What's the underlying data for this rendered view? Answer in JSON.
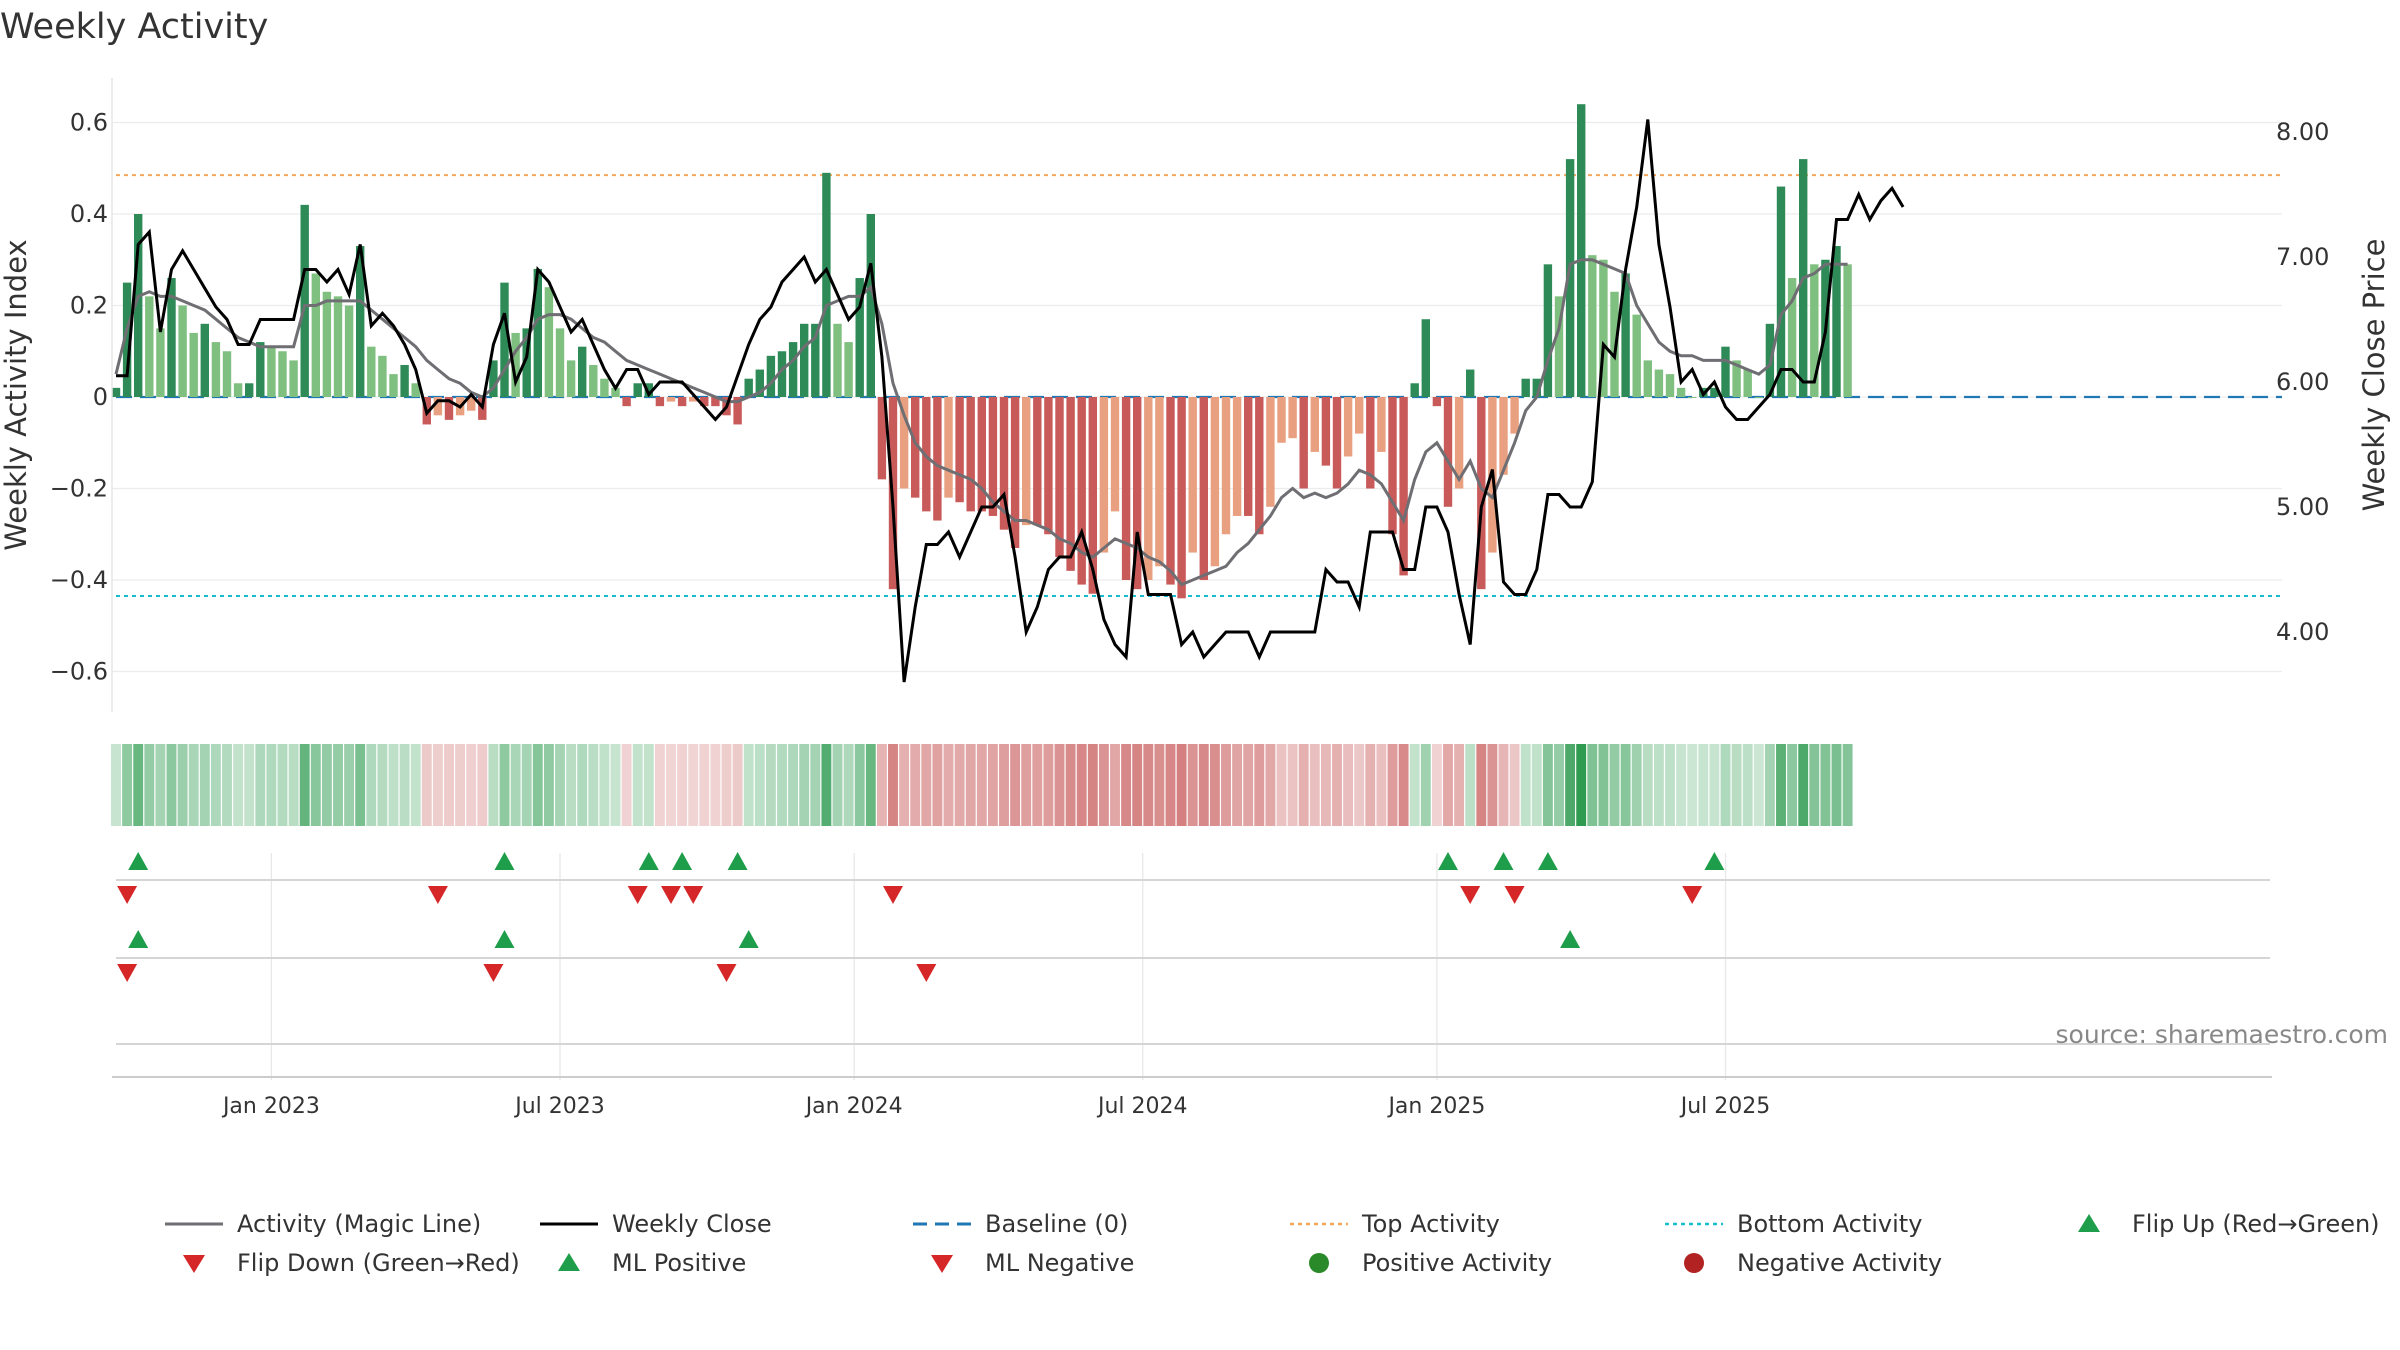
{
  "title": "Weekly Activity",
  "source": "source: sharemaestro.com",
  "colors": {
    "pos_strong": "#2e8b57",
    "pos_weak": "#7fbf7f",
    "neg_strong": "#c85a5a",
    "neg_weak": "#e8a080",
    "magic_line": "#6e6e73",
    "close_line": "#000000",
    "baseline": "#1f77b4",
    "top_line": "#f5a65b",
    "bottom_line": "#17becf",
    "marker_up": "#1e9e4a",
    "marker_down": "#d62728",
    "pos_dot": "#2a8a2a",
    "neg_dot": "#b22222"
  },
  "chart_data": {
    "type": "bar",
    "title": "Weekly Activity",
    "ylabel": "Weekly Activity Index",
    "y2label": "Weekly Close Price",
    "ylim": [
      -0.7,
      0.7
    ],
    "y2lim": [
      3.5,
      8.5
    ],
    "yticks": [
      {
        "value": 0.6,
        "label": "0.6"
      },
      {
        "value": 0.4,
        "label": "0.4"
      },
      {
        "value": 0.2,
        "label": "0.2"
      },
      {
        "value": 0,
        "label": "0"
      },
      {
        "value": -0.2,
        "label": "−0.2"
      },
      {
        "value": -0.4,
        "label": "−0.4"
      },
      {
        "value": -0.6,
        "label": "−0.6"
      }
    ],
    "y2ticks": [
      {
        "value": 8,
        "label": "8.00"
      },
      {
        "value": 7,
        "label": "7.00"
      },
      {
        "value": 6,
        "label": "6.00"
      },
      {
        "value": 5,
        "label": "5.00"
      },
      {
        "value": 4,
        "label": "4.00"
      }
    ],
    "xticks": [
      {
        "week": 14,
        "label": "Jan 2023"
      },
      {
        "week": 40,
        "label": "Jul 2023"
      },
      {
        "week": 66.5,
        "label": "Jan 2024"
      },
      {
        "week": 92.5,
        "label": "Jul 2024"
      },
      {
        "week": 119,
        "label": "Jan 2025"
      },
      {
        "week": 145,
        "label": "Jul 2025"
      }
    ],
    "weeks": 158,
    "top_activity": 0.485,
    "bottom_activity": -0.435,
    "activity": [
      0.02,
      0.25,
      0.4,
      0.22,
      0.15,
      0.26,
      0.2,
      0.14,
      0.16,
      0.12,
      0.1,
      0.03,
      0.03,
      0.12,
      0.11,
      0.1,
      0.08,
      0.42,
      0.27,
      0.23,
      0.22,
      0.2,
      0.33,
      0.11,
      0.09,
      0.05,
      0.07,
      0.03,
      -0.06,
      -0.04,
      -0.05,
      -0.04,
      -0.03,
      -0.05,
      0.08,
      0.25,
      0.14,
      0.15,
      0.28,
      0.24,
      0.15,
      0.08,
      0.11,
      0.07,
      0.04,
      0.02,
      -0.02,
      0.03,
      0.03,
      -0.02,
      -0.01,
      -0.02,
      -0.01,
      -0.02,
      -0.02,
      -0.04,
      -0.06,
      0.04,
      0.06,
      0.09,
      0.1,
      0.12,
      0.16,
      0.16,
      0.49,
      0.16,
      0.12,
      0.26,
      0.4,
      -0.18,
      -0.42,
      -0.2,
      -0.22,
      -0.25,
      -0.27,
      -0.22,
      -0.23,
      -0.25,
      -0.25,
      -0.26,
      -0.29,
      -0.33,
      -0.28,
      -0.28,
      -0.3,
      -0.35,
      -0.38,
      -0.41,
      -0.43,
      -0.34,
      -0.25,
      -0.4,
      -0.42,
      -0.4,
      -0.37,
      -0.41,
      -0.44,
      -0.34,
      -0.4,
      -0.37,
      -0.3,
      -0.26,
      -0.26,
      -0.3,
      -0.24,
      -0.1,
      -0.09,
      -0.2,
      -0.12,
      -0.15,
      -0.2,
      -0.13,
      -0.08,
      -0.2,
      -0.12,
      -0.3,
      -0.39,
      0.03,
      0.17,
      -0.02,
      -0.24,
      -0.2,
      0.06,
      -0.42,
      -0.34,
      -0.17,
      -0.08,
      0.04,
      0.04,
      0.29,
      0.22,
      0.52,
      0.64,
      0.31,
      0.3,
      0.23,
      0.27,
      0.18,
      0.08,
      0.06,
      0.05,
      0.02,
      0.0,
      0.02,
      0.02,
      0.11,
      0.08,
      0.06,
      0.0,
      0.16,
      0.46,
      0.26,
      0.52,
      0.29,
      0.3,
      0.33,
      0.29
    ],
    "magic_line": [
      0.05,
      0.15,
      0.22,
      0.23,
      0.22,
      0.22,
      0.21,
      0.2,
      0.19,
      0.17,
      0.15,
      0.13,
      0.12,
      0.11,
      0.11,
      0.11,
      0.11,
      0.2,
      0.2,
      0.21,
      0.21,
      0.21,
      0.21,
      0.19,
      0.17,
      0.15,
      0.13,
      0.11,
      0.08,
      0.06,
      0.04,
      0.03,
      0.01,
      0.0,
      0.02,
      0.06,
      0.1,
      0.13,
      0.17,
      0.18,
      0.18,
      0.17,
      0.15,
      0.13,
      0.12,
      0.1,
      0.08,
      0.07,
      0.06,
      0.05,
      0.04,
      0.03,
      0.02,
      0.01,
      0.0,
      -0.01,
      -0.01,
      0.0,
      0.01,
      0.03,
      0.06,
      0.08,
      0.11,
      0.13,
      0.2,
      0.21,
      0.22,
      0.22,
      0.24,
      0.16,
      0.03,
      -0.04,
      -0.1,
      -0.13,
      -0.15,
      -0.16,
      -0.17,
      -0.18,
      -0.2,
      -0.23,
      -0.25,
      -0.27,
      -0.27,
      -0.28,
      -0.29,
      -0.31,
      -0.32,
      -0.34,
      -0.35,
      -0.33,
      -0.31,
      -0.32,
      -0.33,
      -0.35,
      -0.36,
      -0.38,
      -0.41,
      -0.4,
      -0.39,
      -0.38,
      -0.37,
      -0.34,
      -0.32,
      -0.29,
      -0.26,
      -0.22,
      -0.2,
      -0.22,
      -0.21,
      -0.22,
      -0.21,
      -0.19,
      -0.16,
      -0.17,
      -0.19,
      -0.23,
      -0.27,
      -0.18,
      -0.12,
      -0.1,
      -0.14,
      -0.18,
      -0.14,
      -0.2,
      -0.22,
      -0.16,
      -0.1,
      -0.03,
      0.0,
      0.08,
      0.15,
      0.29,
      0.3,
      0.3,
      0.29,
      0.28,
      0.27,
      0.2,
      0.16,
      0.12,
      0.1,
      0.09,
      0.09,
      0.08,
      0.08,
      0.08,
      0.07,
      0.06,
      0.05,
      0.07,
      0.18,
      0.21,
      0.26,
      0.27,
      0.29,
      0.29,
      0.29
    ],
    "weekly_close": [
      6.05,
      6.05,
      7.1,
      7.2,
      6.4,
      6.9,
      7.05,
      6.9,
      6.75,
      6.6,
      6.5,
      6.3,
      6.3,
      6.5,
      6.5,
      6.5,
      6.5,
      6.9,
      6.9,
      6.8,
      6.9,
      6.7,
      7.1,
      6.45,
      6.55,
      6.45,
      6.3,
      6.1,
      5.75,
      5.85,
      5.85,
      5.8,
      5.9,
      5.8,
      6.3,
      6.55,
      6.0,
      6.2,
      6.9,
      6.8,
      6.6,
      6.4,
      6.5,
      6.3,
      6.1,
      5.95,
      6.1,
      6.1,
      5.9,
      6.0,
      6.0,
      6.0,
      5.9,
      5.8,
      5.7,
      5.8,
      6.05,
      6.3,
      6.5,
      6.6,
      6.8,
      6.9,
      7.0,
      6.8,
      6.9,
      6.7,
      6.5,
      6.6,
      6.95,
      6.2,
      5.0,
      3.6,
      4.2,
      4.7,
      4.7,
      4.8,
      4.6,
      4.8,
      5.0,
      5.0,
      5.1,
      4.6,
      4.0,
      4.2,
      4.5,
      4.6,
      4.6,
      4.8,
      4.5,
      4.1,
      3.9,
      3.8,
      4.8,
      4.3,
      4.3,
      4.3,
      3.9,
      4.0,
      3.8,
      3.9,
      4.0,
      4.0,
      4.0,
      3.8,
      4.0,
      4.0,
      4.0,
      4.0,
      4.0,
      4.5,
      4.4,
      4.4,
      4.2,
      4.8,
      4.8,
      4.8,
      4.5,
      4.5,
      5.0,
      5.0,
      4.8,
      4.3,
      3.9,
      5.0,
      5.3,
      4.4,
      4.3,
      4.3,
      4.5,
      5.1,
      5.1,
      5.0,
      5.0,
      5.2,
      6.3,
      6.2,
      6.9,
      7.4,
      8.1,
      7.1,
      6.6,
      6.0,
      6.1,
      5.9,
      6.0,
      5.8,
      5.7,
      5.7,
      5.8,
      5.9,
      6.1,
      6.1,
      6.0,
      6.0,
      6.4,
      7.3,
      7.3,
      7.5,
      7.3,
      7.45,
      7.55,
      7.4
    ],
    "flip_up": [
      2,
      35,
      48,
      51,
      56,
      120,
      125,
      129,
      144
    ],
    "flip_down": [
      1,
      29,
      47,
      50,
      52,
      70,
      122,
      126,
      142
    ],
    "ml_positive": [
      2,
      35,
      57,
      131
    ],
    "ml_negative": [
      1,
      34,
      55,
      73
    ]
  },
  "legend": [
    {
      "label": "Activity (Magic Line)",
      "symbol": "line",
      "color": "#6e6e73"
    },
    {
      "label": "Weekly Close",
      "symbol": "line",
      "color": "#000000"
    },
    {
      "label": "Baseline (0)",
      "symbol": "dash",
      "color": "#1f77b4"
    },
    {
      "label": "Top Activity",
      "symbol": "dot-line",
      "color": "#f5a65b"
    },
    {
      "label": "Bottom Activity",
      "symbol": "dot-line",
      "color": "#17becf"
    },
    {
      "label": "Flip Up (Red→Green)",
      "symbol": "tri-up",
      "color": "#1e9e4a"
    },
    {
      "label": "Flip Down (Green→Red)",
      "symbol": "tri-down",
      "color": "#d62728"
    },
    {
      "label": "ML Positive",
      "symbol": "tri-up",
      "color": "#1e9e4a"
    },
    {
      "label": "ML Negative",
      "symbol": "tri-down",
      "color": "#d62728"
    },
    {
      "label": "Positive Activity",
      "symbol": "circle",
      "color": "#2a8a2a"
    },
    {
      "label": "Negative Activity",
      "symbol": "circle",
      "color": "#b22222"
    }
  ]
}
